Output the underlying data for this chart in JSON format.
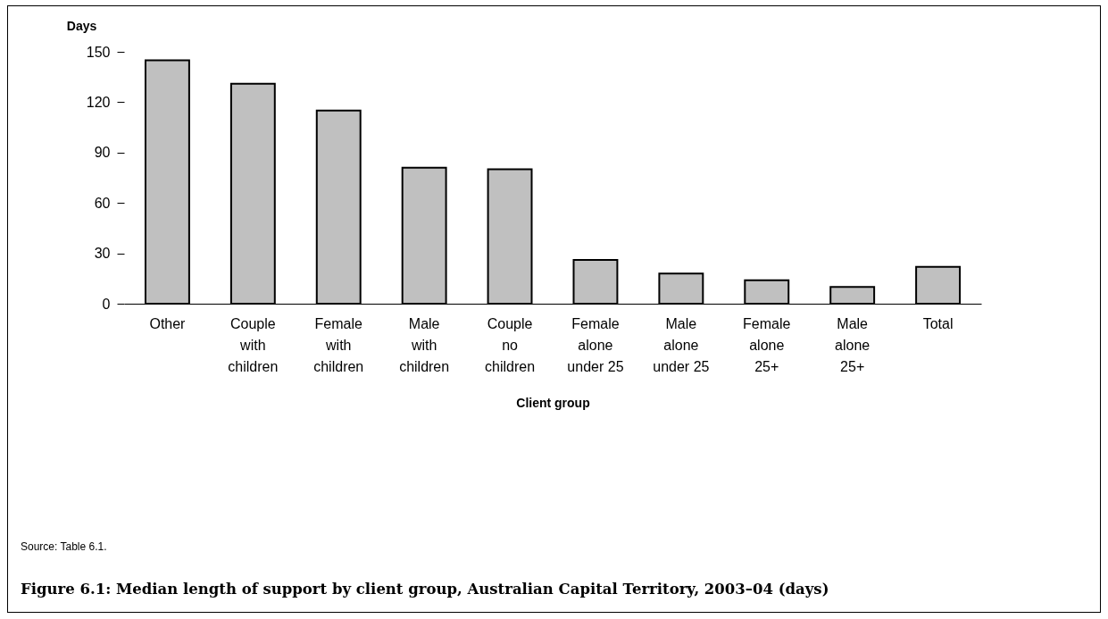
{
  "chart_data": {
    "type": "bar",
    "title": "Figure 6.1: Median length of support by client group, Australian Capital Territory, 2003–04 (days)",
    "xlabel": "Client group",
    "ylabel": "Days",
    "categories": [
      "Other",
      "Couple with children",
      "Female with children",
      "Male with children",
      "Couple no children",
      "Female alone under 25",
      "Male alone under 25",
      "Female alone 25+",
      "Male alone 25+",
      "Total"
    ],
    "values": [
      145,
      131,
      115,
      81,
      80,
      26,
      18,
      14,
      10,
      22
    ],
    "color": "#c0c0c0",
    "ylim": [
      0,
      150
    ],
    "yticks": [
      0,
      30,
      60,
      90,
      120,
      150
    ],
    "grid": false,
    "annotations": [
      "Source: Table 6.1."
    ]
  }
}
